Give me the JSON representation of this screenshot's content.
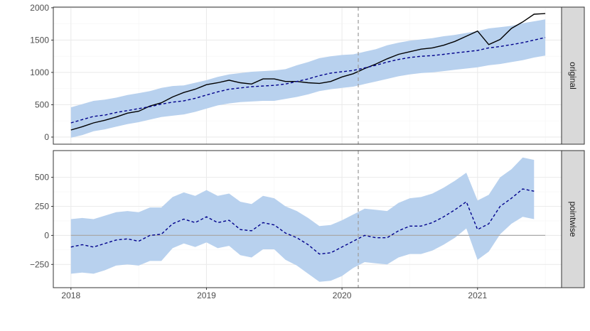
{
  "chart_data": {
    "type": "line",
    "x_ticks": [
      "2018",
      "2019",
      "2020",
      "2021"
    ],
    "xlim": [
      2017.87,
      2021.62
    ],
    "intervention_x": 2020.12,
    "colors": {
      "band": "#b8d1ee",
      "observed": "#000000",
      "predicted": "#00008b",
      "intervention": "#a0a0a0",
      "zero_line": "#a9a9a9",
      "strip": "#d9d9d9",
      "grid_major": "#ebebeb",
      "grid_minor": "#f5f5f5"
    },
    "panels": [
      {
        "strip_label": "original",
        "ylim": [
          -110,
          2010
        ],
        "y_ticks": [
          0,
          500,
          1000,
          1500,
          2000
        ],
        "y_tick_labels": [
          "0",
          "500",
          "1000",
          "1500",
          "2000"
        ],
        "x": [
          2018.0,
          2018.083,
          2018.167,
          2018.25,
          2018.333,
          2018.417,
          2018.5,
          2018.583,
          2018.667,
          2018.75,
          2018.833,
          2018.917,
          2019.0,
          2019.083,
          2019.167,
          2019.25,
          2019.333,
          2019.417,
          2019.5,
          2019.583,
          2019.667,
          2019.75,
          2019.833,
          2019.917,
          2020.0,
          2020.083,
          2020.167,
          2020.25,
          2020.333,
          2020.417,
          2020.5,
          2020.583,
          2020.667,
          2020.75,
          2020.833,
          2020.917,
          2021.0,
          2021.083,
          2021.167,
          2021.25,
          2021.333,
          2021.417,
          2021.5
        ],
        "series": [
          {
            "name": "observed",
            "values": [
              110,
              160,
              220,
              260,
              310,
              370,
              400,
              480,
              530,
              620,
              690,
              740,
              810,
              840,
              880,
              840,
              820,
              900,
              900,
              860,
              860,
              840,
              830,
              860,
              930,
              980,
              1060,
              1130,
              1210,
              1280,
              1320,
              1360,
              1380,
              1420,
              1480,
              1560,
              1640,
              1430,
              1510,
              1680,
              1780,
              1900,
              1910
            ]
          },
          {
            "name": "predicted",
            "values": [
              220,
              270,
              320,
              340,
              380,
              410,
              440,
              470,
              510,
              540,
              560,
              600,
              650,
              700,
              740,
              760,
              780,
              790,
              800,
              820,
              860,
              900,
              950,
              990,
              1010,
              1030,
              1070,
              1110,
              1160,
              1200,
              1230,
              1250,
              1260,
              1280,
              1300,
              1320,
              1340,
              1380,
              1400,
              1430,
              1460,
              1500,
              1540
            ]
          },
          {
            "name": "lower",
            "values": [
              -10,
              30,
              90,
              120,
              160,
              200,
              230,
              270,
              310,
              330,
              350,
              390,
              440,
              490,
              520,
              540,
              550,
              560,
              560,
              590,
              620,
              660,
              710,
              740,
              760,
              780,
              820,
              860,
              900,
              940,
              970,
              990,
              1000,
              1020,
              1040,
              1060,
              1080,
              1110,
              1130,
              1160,
              1190,
              1230,
              1260
            ]
          },
          {
            "name": "upper",
            "values": [
              460,
              510,
              560,
              580,
              610,
              650,
              680,
              710,
              760,
              790,
              800,
              840,
              880,
              930,
              970,
              990,
              1010,
              1020,
              1030,
              1050,
              1110,
              1160,
              1220,
              1250,
              1270,
              1280,
              1320,
              1360,
              1420,
              1460,
              1490,
              1510,
              1530,
              1560,
              1580,
              1610,
              1640,
              1680,
              1700,
              1720,
              1760,
              1790,
              1820
            ]
          }
        ]
      },
      {
        "strip_label": "pointwise",
        "ylim": [
          -450,
          730
        ],
        "y_ticks": [
          -250,
          0,
          250,
          500
        ],
        "y_tick_labels": [
          "−250",
          "0",
          "250",
          "500"
        ],
        "x": [
          2018.0,
          2018.083,
          2018.167,
          2018.25,
          2018.333,
          2018.417,
          2018.5,
          2018.583,
          2018.667,
          2018.75,
          2018.833,
          2018.917,
          2019.0,
          2019.083,
          2019.167,
          2019.25,
          2019.333,
          2019.417,
          2019.5,
          2019.583,
          2019.667,
          2019.75,
          2019.833,
          2019.917,
          2020.0,
          2020.083,
          2020.167,
          2020.25,
          2020.333,
          2020.417,
          2020.5,
          2020.583,
          2020.667,
          2020.75,
          2020.833,
          2020.917,
          2021.0,
          2021.083,
          2021.167,
          2021.25,
          2021.333,
          2021.417,
          2021.5
        ],
        "series": [
          {
            "name": "pointwise",
            "values": [
              -100,
              -80,
              -100,
              -70,
              -40,
              -30,
              -50,
              0,
              10,
              100,
              140,
              110,
              160,
              110,
              130,
              50,
              40,
              110,
              90,
              20,
              -20,
              -80,
              -160,
              -150,
              -100,
              -50,
              0,
              -20,
              -20,
              40,
              80,
              80,
              110,
              160,
              220,
              290,
              50,
              100,
              250,
              320,
              400,
              380,
              null
            ]
          },
          {
            "name": "lower",
            "values": [
              -330,
              -320,
              -330,
              -300,
              -260,
              -250,
              -260,
              -220,
              -220,
              -110,
              -70,
              -100,
              -60,
              -110,
              -90,
              -170,
              -190,
              -120,
              -120,
              -210,
              -260,
              -330,
              -400,
              -390,
              -350,
              -280,
              -230,
              -240,
              -250,
              -190,
              -160,
              -160,
              -130,
              -80,
              -20,
              60,
              -210,
              -140,
              10,
              100,
              160,
              140,
              null
            ]
          },
          {
            "name": "upper",
            "values": [
              140,
              150,
              140,
              170,
              200,
              210,
              200,
              240,
              240,
              330,
              370,
              340,
              390,
              340,
              360,
              290,
              270,
              340,
              320,
              250,
              210,
              150,
              80,
              90,
              130,
              180,
              230,
              220,
              210,
              280,
              320,
              330,
              360,
              410,
              470,
              540,
              300,
              350,
              500,
              570,
              670,
              650,
              null
            ]
          }
        ]
      }
    ]
  }
}
